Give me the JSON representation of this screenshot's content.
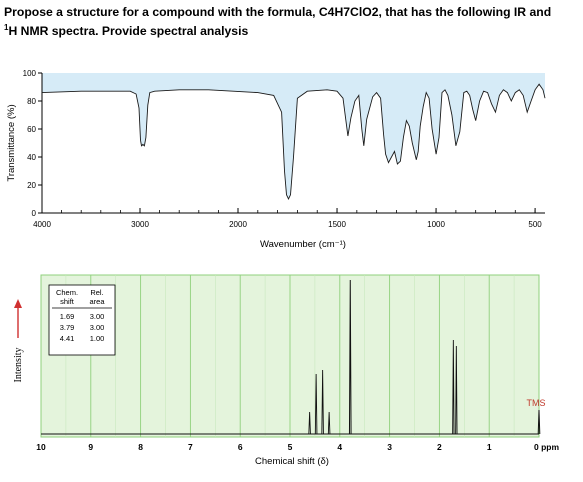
{
  "question": {
    "line1": "Propose a structure for a compound with the formula, C4H7ClO2, that has the following IR and",
    "line2_sup": "1",
    "line2": "H NMR spectra. Provide spectral analysis"
  },
  "chart_data": [
    {
      "type": "line",
      "name": "ir_spectrum",
      "xlabel": "Wavenumber (cm⁻¹)",
      "ylabel": "Transmittance (%)",
      "xlim": [
        4000,
        450
      ],
      "ylim": [
        0,
        100
      ],
      "x_ticks": [
        4000,
        3000,
        2000,
        1500,
        1000,
        500
      ],
      "x_tick_labels": [
        "4000",
        "3000",
        "2000",
        "1500",
        "1000",
        "500"
      ],
      "y_ticks": [
        0,
        20,
        40,
        60,
        80,
        100
      ],
      "y_tick_labels": [
        "0",
        "20",
        "40",
        "60",
        "80",
        "100"
      ],
      "colors": {
        "fill": "#d6ebf7",
        "line": "#1a1a1a"
      },
      "series": [
        {
          "x": [
            4000,
            3600,
            3300,
            3100,
            3040,
            3010,
            2995,
            2985,
            2970,
            2955,
            2940,
            2920,
            2900,
            2850,
            2600,
            2300,
            2050,
            1900,
            1820,
            1780,
            1765,
            1755,
            1745,
            1735,
            1720,
            1700,
            1650,
            1550,
            1500,
            1470,
            1455,
            1445,
            1430,
            1410,
            1390,
            1375,
            1365,
            1350,
            1320,
            1300,
            1280,
            1265,
            1255,
            1240,
            1225,
            1210,
            1195,
            1180,
            1165,
            1150,
            1135,
            1120,
            1100,
            1090,
            1080,
            1065,
            1050,
            1035,
            1020,
            1000,
            985,
            970,
            955,
            940,
            920,
            900,
            880,
            860,
            845,
            830,
            815,
            800,
            780,
            760,
            740,
            720,
            700,
            680,
            660,
            640,
            620,
            600,
            580,
            560,
            540,
            520,
            500,
            480,
            460,
            450
          ],
          "y": [
            86,
            87,
            87,
            87,
            85,
            75,
            52,
            48,
            49,
            48,
            54,
            77,
            86,
            87,
            88,
            88,
            87,
            86,
            84,
            72,
            30,
            13,
            10,
            13,
            40,
            82,
            87,
            88,
            87,
            82,
            66,
            55,
            68,
            80,
            84,
            60,
            48,
            67,
            83,
            86,
            82,
            56,
            42,
            36,
            40,
            44,
            35,
            37,
            54,
            66,
            62,
            50,
            38,
            44,
            62,
            76,
            86,
            82,
            60,
            42,
            54,
            86,
            88,
            84,
            70,
            48,
            58,
            86,
            87,
            84,
            74,
            66,
            80,
            87,
            86,
            78,
            72,
            84,
            88,
            86,
            80,
            86,
            88,
            84,
            72,
            80,
            88,
            92,
            88,
            82
          ]
        }
      ]
    },
    {
      "type": "line",
      "name": "h_nmr_spectrum",
      "xlabel": "Chemical shift (δ)",
      "ylabel": "Intensity",
      "xlim": [
        10,
        0
      ],
      "x_ticks": [
        10,
        9,
        8,
        7,
        6,
        5,
        4,
        3,
        2,
        1,
        0
      ],
      "x_tick_labels": [
        "10",
        "9",
        "8",
        "7",
        "6",
        "5",
        "4",
        "3",
        "2",
        "1",
        "0 ppm"
      ],
      "colors": {
        "background": "#e4f4dc",
        "grid": "#8fd07c",
        "line": "#111111"
      },
      "peaks": [
        {
          "shift": 4.41,
          "relative_area": 1.0,
          "multiplicity": "quartet"
        },
        {
          "shift": 3.79,
          "relative_area": 3.0,
          "multiplicity": "singlet"
        },
        {
          "shift": 1.69,
          "relative_area": 3.0,
          "multiplicity": "doublet"
        },
        {
          "shift": 0.0,
          "label": "TMS"
        }
      ],
      "table": {
        "headers": [
          "Chem. shift",
          "Rel. area"
        ],
        "header_lines": [
          [
            "Chem.",
            "Rel."
          ],
          [
            "shift",
            "area"
          ]
        ],
        "rows": [
          [
            "1.69",
            "3.00"
          ],
          [
            "3.79",
            "3.00"
          ],
          [
            "4.41",
            "1.00"
          ]
        ]
      },
      "annotations": [
        "TMS"
      ]
    }
  ]
}
